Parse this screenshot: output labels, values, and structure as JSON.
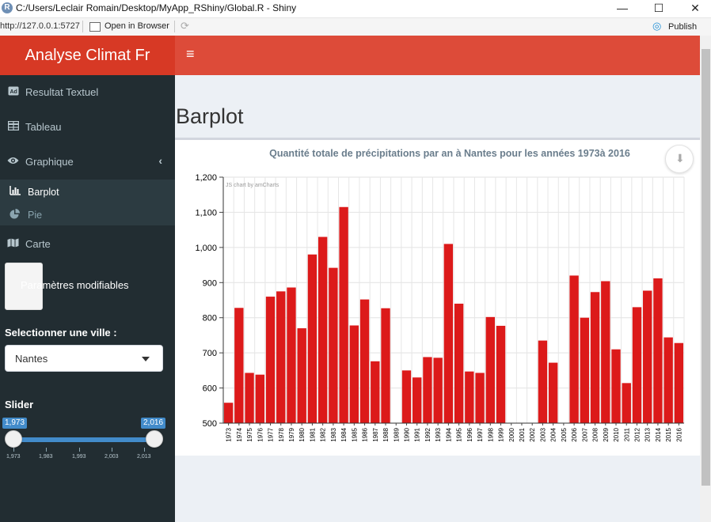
{
  "window": {
    "title": "C:/Users/Leclair Romain/Desktop/MyApp_RShiny/Global.R - Shiny",
    "r_logo": "R",
    "minimize_glyph": "—",
    "maximize_glyph": "☐",
    "close_glyph": "✕"
  },
  "toolbar": {
    "url": "http://127.0.0.1:5727",
    "open_in_browser": "Open in Browser",
    "publish": "Publish"
  },
  "header": {
    "app_title": "Analyse Climat Fr",
    "menu_glyph": "≡",
    "brand_color": "#dd4b39"
  },
  "sidebar": {
    "items": [
      {
        "label": "Resultat Textuel",
        "icon": "text-icon"
      },
      {
        "label": "Tableau",
        "icon": "table-icon"
      },
      {
        "label": "Graphique",
        "icon": "eye-icon"
      },
      {
        "label": "Carte",
        "icon": "map-icon"
      }
    ],
    "subitems": [
      {
        "label": "Barplot",
        "icon": "bar-chart-icon",
        "active": true
      },
      {
        "label": "Pie",
        "icon": "pie-chart-icon",
        "active": false
      }
    ],
    "params_label": "Paramètres modifiables",
    "city_label": "Selectionner une ville :",
    "city_value": "Nantes",
    "slider_label": "Slider",
    "slider": {
      "min": 1973,
      "max": 2016,
      "from_label": "1,973",
      "to_label": "2,016",
      "ticks": [
        "1,973",
        "1,983",
        "1,993",
        "2,003",
        "2,013"
      ]
    }
  },
  "page": {
    "title": "Barplot"
  },
  "chart_data": {
    "type": "bar",
    "title": "Quantité totale de précipitations par an à Nantes pour les années 1973à 2016",
    "credit": "JS chart by amCharts",
    "bar_color": "#dc1a1a",
    "ylim": [
      500,
      1200
    ],
    "y_ticks": [
      "500",
      "600",
      "700",
      "800",
      "900",
      "1,000",
      "1,100",
      "1,200"
    ],
    "grid": true,
    "categories": [
      "1973",
      "1974",
      "1975",
      "1976",
      "1977",
      "1978",
      "1979",
      "1980",
      "1981",
      "1982",
      "1983",
      "1984",
      "1985",
      "1986",
      "1987",
      "1988",
      "1989",
      "1990",
      "1991",
      "1992",
      "1993",
      "1994",
      "1995",
      "1996",
      "1997",
      "1998",
      "1999",
      "2000",
      "2001",
      "2002",
      "2003",
      "2004",
      "2005",
      "2006",
      "2007",
      "2008",
      "2009",
      "2010",
      "2011",
      "2012",
      "2013",
      "2014",
      "2015",
      "2016"
    ],
    "values": [
      558,
      828,
      643,
      638,
      860,
      875,
      886,
      770,
      980,
      1030,
      942,
      1115,
      778,
      852,
      676,
      827,
      null,
      650,
      630,
      688,
      686,
      1010,
      840,
      647,
      643,
      802,
      777,
      null,
      null,
      null,
      735,
      672,
      null,
      920,
      800,
      873,
      904,
      710,
      614,
      830,
      877,
      912,
      744,
      728
    ]
  }
}
